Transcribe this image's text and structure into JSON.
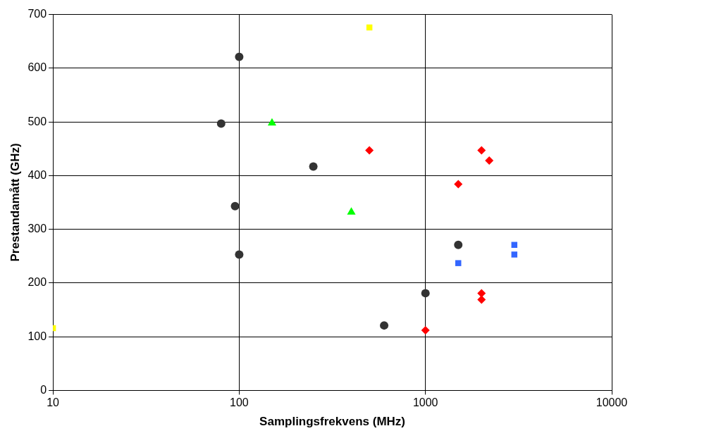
{
  "chart_data": {
    "type": "scatter",
    "xlabel": "Samplingsfrekvens (MHz)",
    "ylabel": "Prestandamått (GHz)",
    "log": "x",
    "grid": true,
    "legend": false,
    "xlim": [
      10,
      10000
    ],
    "xticks": [
      10,
      100,
      1000,
      10000
    ],
    "ylim": [
      0,
      700
    ],
    "yticks": [
      0,
      100,
      200,
      300,
      400,
      500,
      600,
      700
    ],
    "series": [
      {
        "color": "#ff0000",
        "marker": "diamond",
        "x": [
          500,
          2000,
          2200,
          1500,
          2000,
          2000,
          1000
        ],
        "values": [
          447,
          447,
          428,
          384,
          181,
          169,
          112
        ]
      },
      {
        "color": "#3366ff",
        "marker": "square",
        "x": [
          1500,
          3000,
          3000
        ],
        "values": [
          237,
          271,
          253
        ]
      },
      {
        "color": "#333333",
        "marker": "circle",
        "x": [
          100,
          80,
          95,
          100,
          250,
          1500,
          1000,
          600
        ],
        "values": [
          621,
          497,
          343,
          253,
          417,
          271,
          181,
          121
        ]
      },
      {
        "color": "#00ff00",
        "marker": "triangle",
        "x": [
          150,
          400
        ],
        "values": [
          498,
          332
        ]
      },
      {
        "color": "#ffff00",
        "marker": "square",
        "x": [
          500,
          10
        ],
        "values": [
          676,
          116
        ]
      }
    ]
  }
}
